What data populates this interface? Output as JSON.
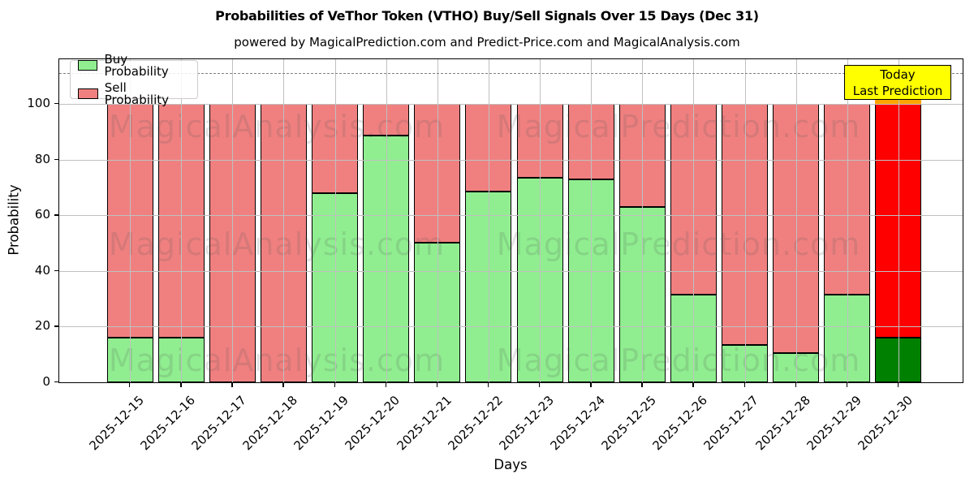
{
  "header": {
    "title": "Probabilities of VeThor Token (VTHO) Buy/Sell Signals Over 15 Days (Dec 31)",
    "subtitle": "powered by MagicalPrediction.com and Predict-Price.com and MagicalAnalysis.com"
  },
  "legend": {
    "items": [
      {
        "label": "Buy Probability",
        "color": "#90ee90"
      },
      {
        "label": "Sell Probability",
        "color": "#f08080"
      }
    ]
  },
  "annotation": {
    "line1": "Today",
    "line2": "Last Prediction",
    "bg": "#ffff00",
    "border": "#000000"
  },
  "watermarks": {
    "left_text": "MagicalAnalysis.com",
    "right_text": "MagicalPrediction.com"
  },
  "chart_data": {
    "type": "bar",
    "stacked": true,
    "title": "Probabilities of VeThor Token (VTHO) Buy/Sell Signals Over 15 Days (Dec 31)",
    "subtitle": "powered by MagicalPrediction.com and Predict-Price.com and MagicalAnalysis.com",
    "xlabel": "Days",
    "ylabel": "Probability",
    "ylim": [
      0,
      116
    ],
    "yticks": [
      0,
      20,
      40,
      60,
      80,
      100
    ],
    "dashed_cutoff_y": 111,
    "grid": true,
    "legend_position": "upper left",
    "categories": [
      "2025-12-15",
      "2025-12-16",
      "2025-12-17",
      "2025-12-18",
      "2025-12-19",
      "2025-12-20",
      "2025-12-21",
      "2025-12-22",
      "2025-12-23",
      "2025-12-24",
      "2025-12-25",
      "2025-12-26",
      "2025-12-27",
      "2025-12-28",
      "2025-12-29",
      "2025-12-30"
    ],
    "series": [
      {
        "name": "Buy Probability",
        "color": "#90ee90",
        "today_color": "#008000",
        "values": [
          16,
          16,
          0,
          0,
          68,
          88.5,
          50,
          68.5,
          73.5,
          73,
          63,
          31.5,
          13.5,
          10.5,
          31.5,
          16
        ]
      },
      {
        "name": "Sell Probability",
        "color": "#f08080",
        "today_color": "#ff0000",
        "values": [
          84,
          84,
          100,
          100,
          32,
          11.5,
          50,
          31.5,
          26.5,
          27,
          37,
          68.5,
          86.5,
          89.5,
          68.5,
          84
        ]
      }
    ],
    "today_index": 15,
    "today_cap_color": "#ffa500",
    "bar_total": 100
  }
}
